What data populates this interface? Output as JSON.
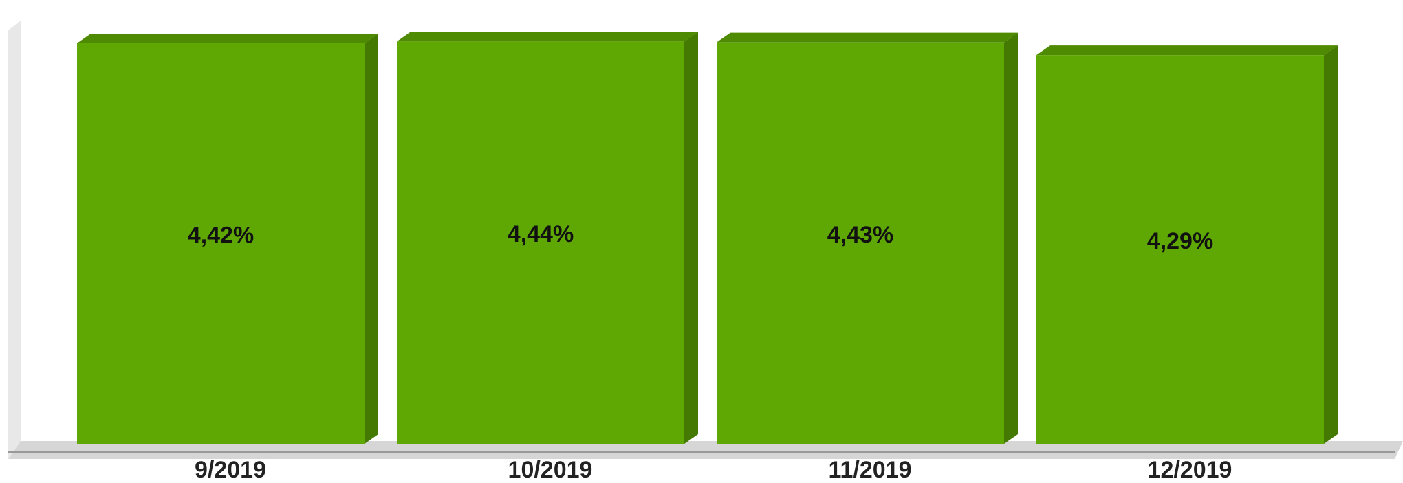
{
  "chart_data": {
    "type": "bar",
    "style": "3d",
    "categories": [
      "9/2019",
      "10/2019",
      "11/2019",
      "12/2019"
    ],
    "values": [
      4.42,
      4.44,
      4.43,
      4.29
    ],
    "value_labels": [
      "4,42%",
      "4,44%",
      "4,43%",
      "4,29%"
    ],
    "title": "",
    "xlabel": "",
    "ylabel": "",
    "ylim": [
      0,
      4.5
    ],
    "grid": false,
    "legend": "none",
    "colors": {
      "bar_front": "#5fa804",
      "bar_top": "#4f8a03",
      "bar_side": "#457a02",
      "floor": "#d6d6d6",
      "wall": "#e8e8e8",
      "axis_line": "#999999"
    }
  }
}
